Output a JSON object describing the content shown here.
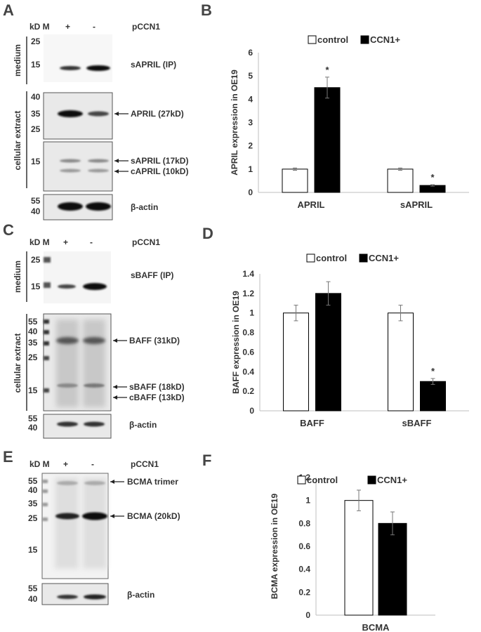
{
  "colors": {
    "control": "#ffffff",
    "ccn1": "#000000",
    "axis": "#bfbfbf",
    "blot": "#e9e9e9"
  },
  "panels": {
    "A": {
      "letter": "A",
      "header": {
        "marker": "kD M",
        "plus": "+",
        "minus": "-",
        "construct": "pCCN1"
      },
      "section_medium": "medium",
      "section_cellular": "cellular extract",
      "ladder_medium": [
        "25",
        "15"
      ],
      "ladder_cell1": [
        "40",
        "35",
        "25"
      ],
      "ladder_cell2": [
        "15"
      ],
      "ladder_actin": [
        "55",
        "40"
      ],
      "band_medium": "sAPRIL (IP)",
      "band_full": "APRIL (27kD)",
      "band_s": "sAPRIL (17kD)",
      "band_c": "cAPRIL (10kD)",
      "band_actin": "β-actin"
    },
    "C": {
      "letter": "C",
      "header": {
        "marker": "kD M",
        "plus": "+",
        "minus": "-",
        "construct": "pCCN1"
      },
      "section_medium": "medium",
      "section_cellular": "cellular extract",
      "ladder_medium": [
        "25",
        "15"
      ],
      "ladder_cell": [
        "55",
        "40",
        "35",
        "25",
        "15"
      ],
      "ladder_actin": [
        "55",
        "40"
      ],
      "band_medium": "sBAFF (IP)",
      "band_full": "BAFF (31kD)",
      "band_s": "sBAFF (18kD)",
      "band_c": "cBAFF (13kD)",
      "band_actin": "β-actin"
    },
    "E": {
      "letter": "E",
      "header": {
        "marker": "kD M",
        "plus": "+",
        "minus": "-",
        "construct": "pCCN1"
      },
      "ladder_main": [
        "55",
        "40",
        "35",
        "25",
        "15"
      ],
      "ladder_actin": [
        "55",
        "40"
      ],
      "band_trimer": "BCMA trimer",
      "band_mono": "BCMA (20kD)",
      "band_actin": "β-actin"
    }
  },
  "chart_data": [
    {
      "panel": "B",
      "type": "bar",
      "ylabel": "APRIL expression in OE19",
      "categories": [
        "APRIL",
        "sAPRIL"
      ],
      "series": [
        {
          "name": "control",
          "values": [
            1.0,
            1.0
          ],
          "errors": [
            0.05,
            0.05
          ]
        },
        {
          "name": "CCN1+",
          "values": [
            4.5,
            0.3
          ],
          "errors": [
            0.45,
            0.03
          ]
        }
      ],
      "significance": [
        "*",
        "*"
      ],
      "ylim": [
        0,
        6
      ],
      "yticks": [
        "0",
        "1",
        "2",
        "3",
        "4",
        "5",
        "6"
      ],
      "legend": "top-center",
      "grid": false
    },
    {
      "panel": "D",
      "type": "bar",
      "ylabel": "BAFF expression in OE19",
      "categories": [
        "BAFF",
        "sBAFF"
      ],
      "series": [
        {
          "name": "control",
          "values": [
            1.0,
            1.0
          ],
          "errors": [
            0.08,
            0.08
          ]
        },
        {
          "name": "CCN1+",
          "values": [
            1.2,
            0.3
          ],
          "errors": [
            0.12,
            0.03
          ]
        }
      ],
      "significance": [
        "",
        "*"
      ],
      "ylim": [
        0,
        1.4
      ],
      "yticks": [
        "0",
        "0.2",
        "0.4",
        "0.6",
        "0.8",
        "1",
        "1.2",
        "1.4"
      ],
      "legend": "top-center",
      "grid": false
    },
    {
      "panel": "F",
      "type": "bar",
      "ylabel": "BCMA expression in OE19",
      "categories": [
        "BCMA"
      ],
      "series": [
        {
          "name": "control",
          "values": [
            1.0
          ],
          "errors": [
            0.09
          ]
        },
        {
          "name": "CCN1+",
          "values": [
            0.8
          ],
          "errors": [
            0.1
          ]
        }
      ],
      "significance": [
        ""
      ],
      "ylim": [
        0,
        1.2
      ],
      "yticks": [
        "0",
        "0.2",
        "0.4",
        "0.6",
        "0.8",
        "1",
        "1.2"
      ],
      "legend": "top-center",
      "grid": false
    }
  ]
}
